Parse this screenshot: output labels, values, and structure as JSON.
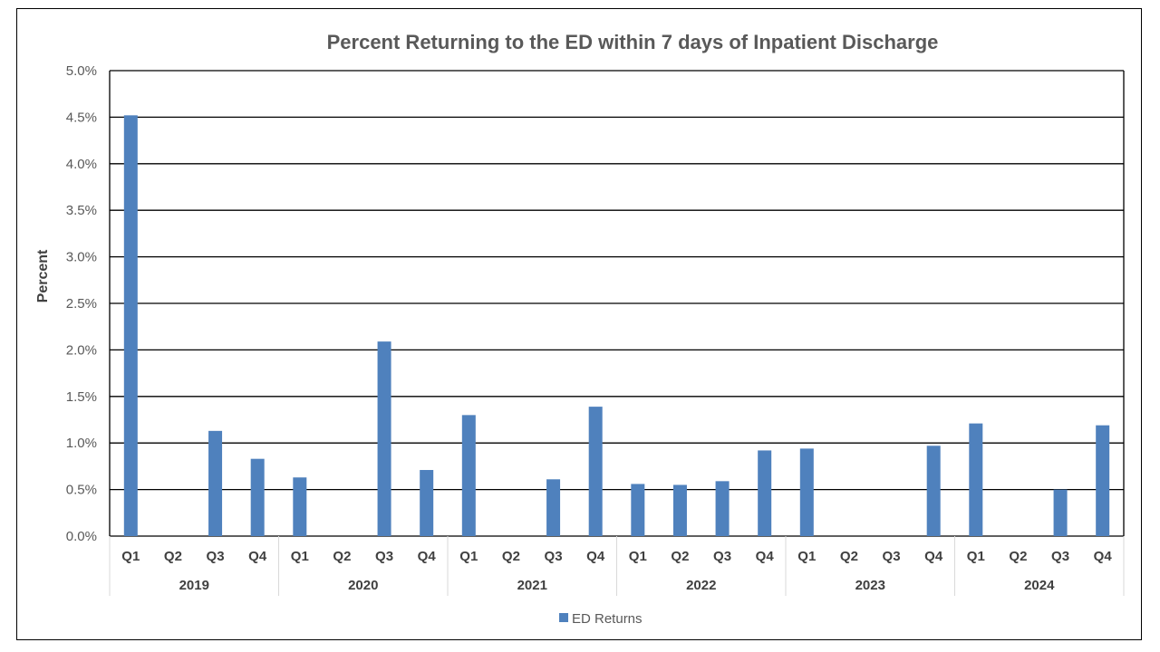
{
  "chart_data": {
    "type": "bar",
    "title": "Percent Returning to the ED within 7 days of Inpatient Discharge",
    "xlabel": "",
    "ylabel": "Percent",
    "ylim": [
      0,
      5.0
    ],
    "yticks": [
      "0.0%",
      "0.5%",
      "1.0%",
      "1.5%",
      "2.0%",
      "2.5%",
      "3.0%",
      "3.5%",
      "4.0%",
      "4.5%",
      "5.0%"
    ],
    "ytick_values": [
      0,
      0.5,
      1.0,
      1.5,
      2.0,
      2.5,
      3.0,
      3.5,
      4.0,
      4.5,
      5.0
    ],
    "grid": true,
    "groups": [
      {
        "year": "2019",
        "quarters": [
          "Q1",
          "Q2",
          "Q3",
          "Q4"
        ]
      },
      {
        "year": "2020",
        "quarters": [
          "Q1",
          "Q2",
          "Q3",
          "Q4"
        ]
      },
      {
        "year": "2021",
        "quarters": [
          "Q1",
          "Q2",
          "Q3",
          "Q4"
        ]
      },
      {
        "year": "2022",
        "quarters": [
          "Q1",
          "Q2",
          "Q3",
          "Q4"
        ]
      },
      {
        "year": "2023",
        "quarters": [
          "Q1",
          "Q2",
          "Q3",
          "Q4"
        ]
      },
      {
        "year": "2024",
        "quarters": [
          "Q1",
          "Q2",
          "Q3",
          "Q4"
        ]
      }
    ],
    "series": [
      {
        "name": "ED Returns",
        "color": "#4f81bd",
        "values": [
          4.52,
          0,
          1.13,
          0.83,
          0.63,
          0,
          2.09,
          0.71,
          1.3,
          0,
          0.61,
          1.39,
          0.56,
          0.55,
          0.59,
          0.92,
          0.94,
          0,
          0,
          0.97,
          1.21,
          0,
          0.5,
          1.19
        ]
      }
    ],
    "legend": {
      "position": "bottom",
      "entries": [
        "ED Returns"
      ]
    }
  },
  "colors": {
    "bar": "#4f81bd",
    "grid": "#000000",
    "axis_separator": "#d9d9d9"
  }
}
